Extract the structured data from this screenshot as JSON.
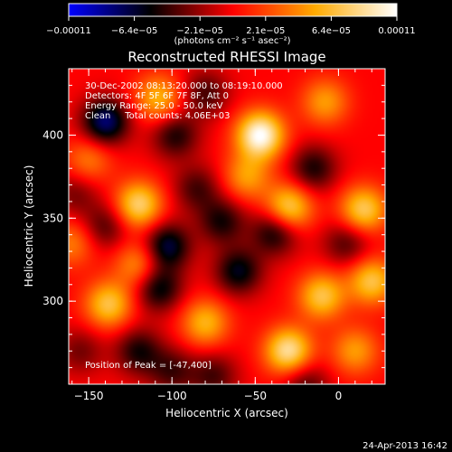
{
  "chart_data": {
    "type": "heatmap",
    "title": "Reconstructed RHESSI Image",
    "xlabel": "Heliocentric X (arcsec)",
    "ylabel": "Heliocentric Y (arcsec)",
    "xlim": [
      -162,
      28
    ],
    "ylim": [
      250,
      440
    ],
    "x_ticks": [
      {
        "value": -150,
        "label": "−150"
      },
      {
        "value": -100,
        "label": "−100"
      },
      {
        "value": -50,
        "label": "−50"
      },
      {
        "value": 0,
        "label": "0"
      }
    ],
    "y_ticks": [
      {
        "value": 300,
        "label": "300"
      },
      {
        "value": 350,
        "label": "350"
      },
      {
        "value": 400,
        "label": "400"
      }
    ],
    "colorbar": {
      "min": -0.00011,
      "max": 0.00011,
      "ticks": [
        "−0.00011",
        "−6.4e−05",
        "−2.1e−05",
        "2.1e−05",
        "6.4e−05",
        "0.00011"
      ],
      "units": "(photons cm⁻² s⁻¹ asec⁻²)",
      "colormap": [
        "#0000ff",
        "#000000",
        "#ff0000",
        "#ffaa00",
        "#ffffff"
      ]
    },
    "annotations": [
      "30-Dec-2002 08:13:20.000 to 08:19:10.000",
      "Detectors: 4F 5F 6F 7F 8F, Att 0",
      "Energy Range: 25.0 - 50.0 keV",
      "Clean     Total counts: 4.06E+03",
      "Position of Peak = [-47,400]"
    ],
    "peak": {
      "x": -47,
      "y": 400
    },
    "sources": [
      {
        "x": -47,
        "y": 400,
        "value": 0.00011
      },
      {
        "x": -120,
        "y": 358,
        "value": 8e-05
      },
      {
        "x": -30,
        "y": 356,
        "value": 8e-05
      },
      {
        "x": 15,
        "y": 355,
        "value": 7.5e-05
      },
      {
        "x": -108,
        "y": 422,
        "value": 6e-05
      },
      {
        "x": -8,
        "y": 420,
        "value": 5e-05
      },
      {
        "x": -55,
        "y": 375,
        "value": 5e-05
      },
      {
        "x": -150,
        "y": 385,
        "value": 4e-05
      },
      {
        "x": -30,
        "y": 270,
        "value": 9e-05
      },
      {
        "x": -138,
        "y": 298,
        "value": 7e-05
      },
      {
        "x": -10,
        "y": 303,
        "value": 7e-05
      },
      {
        "x": 20,
        "y": 312,
        "value": 7e-05
      },
      {
        "x": -80,
        "y": 287,
        "value": 6e-05
      },
      {
        "x": -120,
        "y": 322,
        "value": 5e-05
      },
      {
        "x": 10,
        "y": 270,
        "value": 5e-05
      },
      {
        "x": -160,
        "y": 335,
        "value": 4e-05
      },
      {
        "x": -140,
        "y": 408,
        "value": -8e-05
      },
      {
        "x": -98,
        "y": 400,
        "value": -5e-05
      },
      {
        "x": -103,
        "y": 333,
        "value": -7e-05
      },
      {
        "x": -108,
        "y": 308,
        "value": -6e-05
      },
      {
        "x": -60,
        "y": 318,
        "value": -6e-05
      },
      {
        "x": -38,
        "y": 342,
        "value": -6e-05
      },
      {
        "x": -70,
        "y": 348,
        "value": -5e-05
      },
      {
        "x": -15,
        "y": 380,
        "value": -5e-05
      },
      {
        "x": 5,
        "y": 335,
        "value": -4e-05
      },
      {
        "x": -85,
        "y": 368,
        "value": -4e-05
      },
      {
        "x": -140,
        "y": 345,
        "value": -4e-05
      },
      {
        "x": -120,
        "y": 270,
        "value": -5e-05
      },
      {
        "x": -100,
        "y": 258,
        "value": -4e-05
      },
      {
        "x": -75,
        "y": 255,
        "value": -4e-05
      },
      {
        "x": -20,
        "y": 250,
        "value": -4e-05
      },
      {
        "x": -80,
        "y": 425,
        "value": -4e-05
      },
      {
        "x": -158,
        "y": 365,
        "value": -3e-05
      },
      {
        "x": -155,
        "y": 270,
        "value": -3e-05
      }
    ]
  },
  "footer": {
    "date": "24-Apr-2013 16:42"
  }
}
